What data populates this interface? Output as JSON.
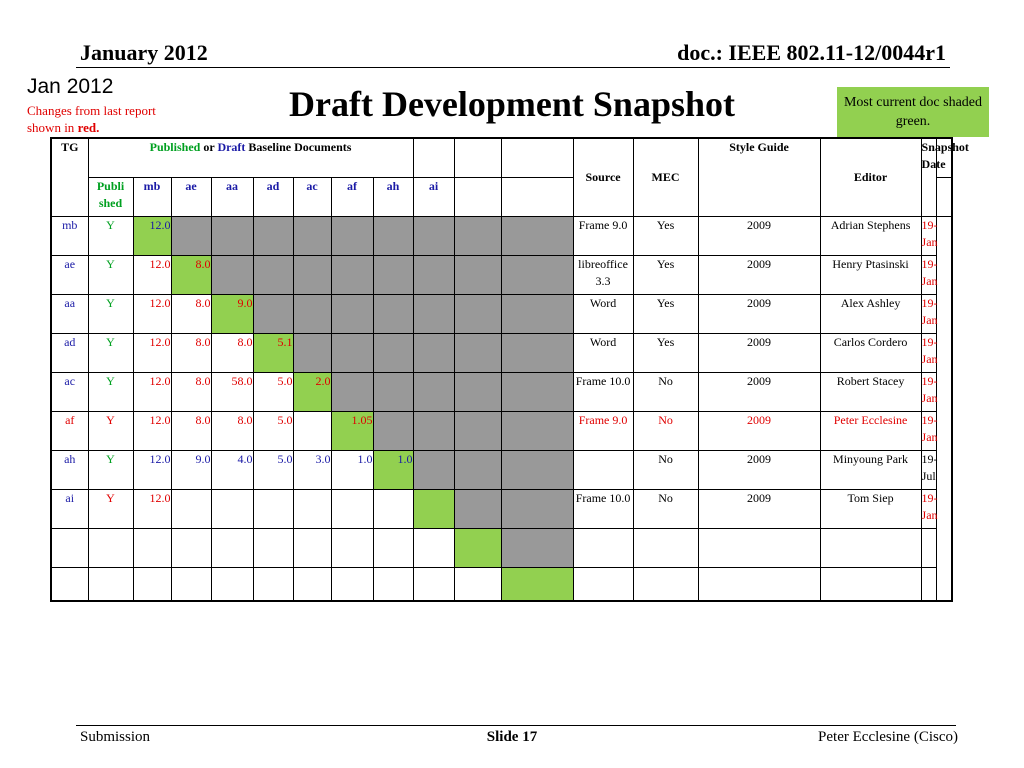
{
  "header": {
    "left": "January 2012",
    "right": "doc.: IEEE 802.11-12/0044r1"
  },
  "date_label": "Jan 2012",
  "changes_note": {
    "text": "Changes from  last report shown in ",
    "red": "red."
  },
  "title": "Draft Development Snapshot",
  "green_note": "Most current doc shaded green.",
  "table": {
    "header1": {
      "tg": "TG",
      "published": "Published",
      "or": " or ",
      "draft": "Draft",
      "baseline": " Baseline Documents",
      "source": "Source",
      "mec": "MEC",
      "style_guide": "Style Guide",
      "editor": "Editor",
      "snapshot_date": "Snapshot Date"
    },
    "header2": [
      "Publi shed",
      "mb",
      "ae",
      "aa",
      "ad",
      "ac",
      "af",
      "ah",
      "ai"
    ],
    "rows": [
      {
        "tg": "mb",
        "pub": "Y",
        "vals": [
          "12.0"
        ],
        "source": "Frame 9.0",
        "mec": "Yes",
        "style": "2009",
        "editor": "Adrian Stephens",
        "date": "19-Jan"
      },
      {
        "tg": "ae",
        "pub": "Y",
        "vals": [
          "12.0",
          "8.0"
        ],
        "source": "libreoffice 3.3",
        "mec": "Yes",
        "style": "2009",
        "editor": "Henry Ptasinski",
        "date": "19-Jan"
      },
      {
        "tg": "aa",
        "pub": "Y",
        "vals": [
          "12.0",
          "8.0",
          "9.0"
        ],
        "source": "Word",
        "mec": "Yes",
        "style": "2009",
        "editor": "Alex Ashley",
        "date": "19-Jan"
      },
      {
        "tg": "ad",
        "pub": "Y",
        "vals": [
          "12.0",
          "8.0",
          "8.0",
          "5.1"
        ],
        "source": "Word",
        "mec": "Yes",
        "style": "2009",
        "editor": "Carlos Cordero",
        "date": "19-Jan"
      },
      {
        "tg": "ac",
        "pub": "Y",
        "vals": [
          "12.0",
          "8.0",
          "58.0",
          "5.0",
          "2.0"
        ],
        "source": "Frame 10.0",
        "mec": "No",
        "style": "2009",
        "editor": "Robert Stacey",
        "date": "19-Jan"
      },
      {
        "tg": "af",
        "pub": "Y",
        "vals": [
          "12.0",
          "8.0",
          "8.0",
          "5.0",
          "",
          "1.05"
        ],
        "source": "Frame 9.0",
        "mec": "No",
        "style": "2009",
        "editor": "Peter Ecclesine",
        "date": "19-Jan"
      },
      {
        "tg": "ah",
        "pub": "Y",
        "vals": [
          "12.0",
          "9.0",
          "4.0",
          "5.0",
          "3.0",
          "1.0",
          "1.0"
        ],
        "source": "",
        "mec": "No",
        "style": "2009",
        "editor": "Minyoung Park",
        "date": "19-Jul"
      },
      {
        "tg": "ai",
        "pub": "Y",
        "vals": [
          "12.0"
        ],
        "source": "Frame 10.0",
        "mec": "No",
        "style": "2009",
        "editor": "Tom Siep",
        "date": "19-Jan"
      }
    ]
  },
  "footer": {
    "left": "Submission",
    "center": "Slide 17",
    "right": "Peter Ecclesine (Cisco)"
  }
}
